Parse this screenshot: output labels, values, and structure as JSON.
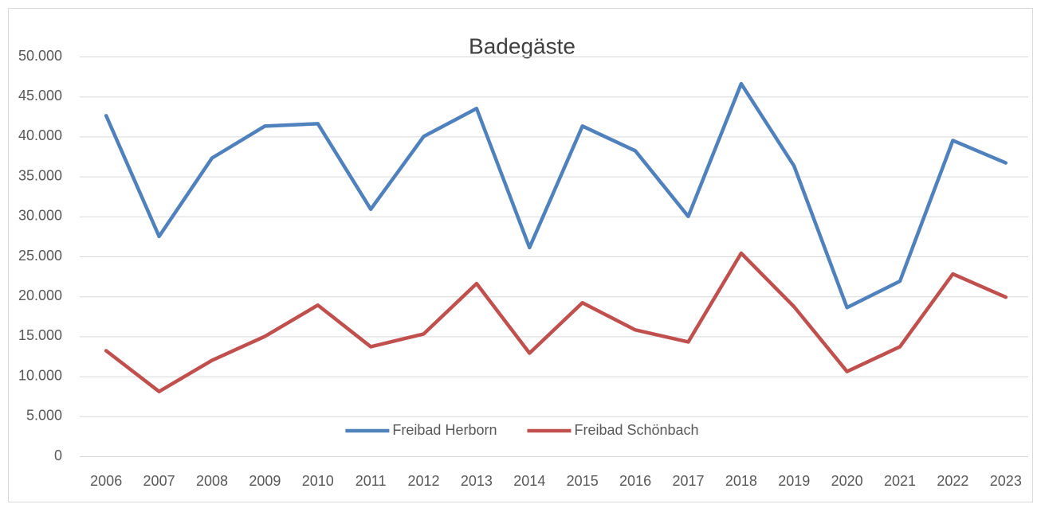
{
  "chart_data": {
    "type": "line",
    "title": "Badegäste",
    "categories": [
      "2006",
      "2007",
      "2008",
      "2009",
      "2010",
      "2011",
      "2012",
      "2013",
      "2014",
      "2015",
      "2016",
      "2017",
      "2018",
      "2019",
      "2020",
      "2021",
      "2022",
      "2023"
    ],
    "series": [
      {
        "name": "Freibad Herborn",
        "color": "#4f81bd",
        "values": [
          42600,
          27500,
          37300,
          41300,
          41600,
          30900,
          40000,
          43500,
          26100,
          41300,
          38200,
          30000,
          46600,
          36300,
          18600,
          21900,
          39500,
          36700
        ]
      },
      {
        "name": "Freibad Schönbach",
        "color": "#c0504d",
        "values": [
          13200,
          8100,
          12000,
          15000,
          18900,
          13700,
          15300,
          21600,
          12900,
          19200,
          15800,
          14300,
          25400,
          18700,
          10600,
          13700,
          22800,
          19900
        ]
      }
    ],
    "ylim": [
      0,
      50000
    ],
    "yticks": [
      0,
      {
        "value": 5000,
        "label": "5.000"
      },
      {
        "value": 10000,
        "label": "10.000"
      },
      {
        "value": 15000,
        "label": "15.000"
      },
      {
        "value": 20000,
        "label": "20.000"
      },
      {
        "value": 25000,
        "label": "25.000"
      },
      {
        "value": 30000,
        "label": "30.000"
      },
      {
        "value": 35000,
        "label": "35.000"
      },
      {
        "value": 40000,
        "label": "40.000"
      },
      {
        "value": 45000,
        "label": "45.000"
      },
      {
        "value": 50000,
        "label": "50.000"
      }
    ],
    "grid": true,
    "legend": "bottom"
  }
}
